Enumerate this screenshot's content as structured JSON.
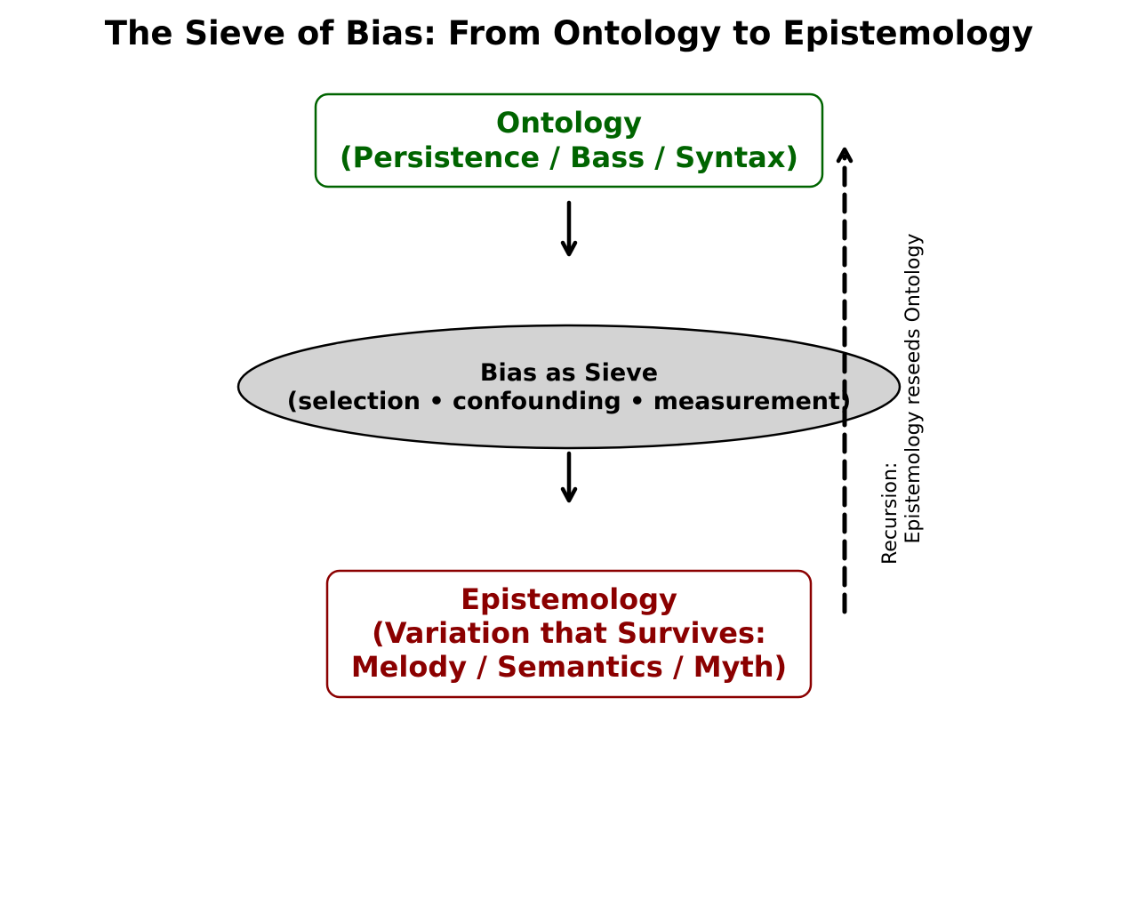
{
  "title": "The Sieve of Bias: From Ontology to Epistemology",
  "colors": {
    "ontology": "#006400",
    "epistemology": "#8b0000",
    "sieve_fill": "#d3d3d3",
    "line": "#000000"
  },
  "nodes": {
    "ontology": {
      "line1": "Ontology",
      "line2": "(Persistence / Bass / Syntax)"
    },
    "sieve": {
      "line1": "Bias as Sieve",
      "line2": "(selection • confounding • measurement)"
    },
    "epistemology": {
      "line1": "Epistemology",
      "line2": "(Variation that Survives:",
      "line3": "Melody / Semantics / Myth)"
    }
  },
  "recursion": {
    "line1": "Recursion:",
    "line2": "Epistemology reseeds Ontology"
  }
}
